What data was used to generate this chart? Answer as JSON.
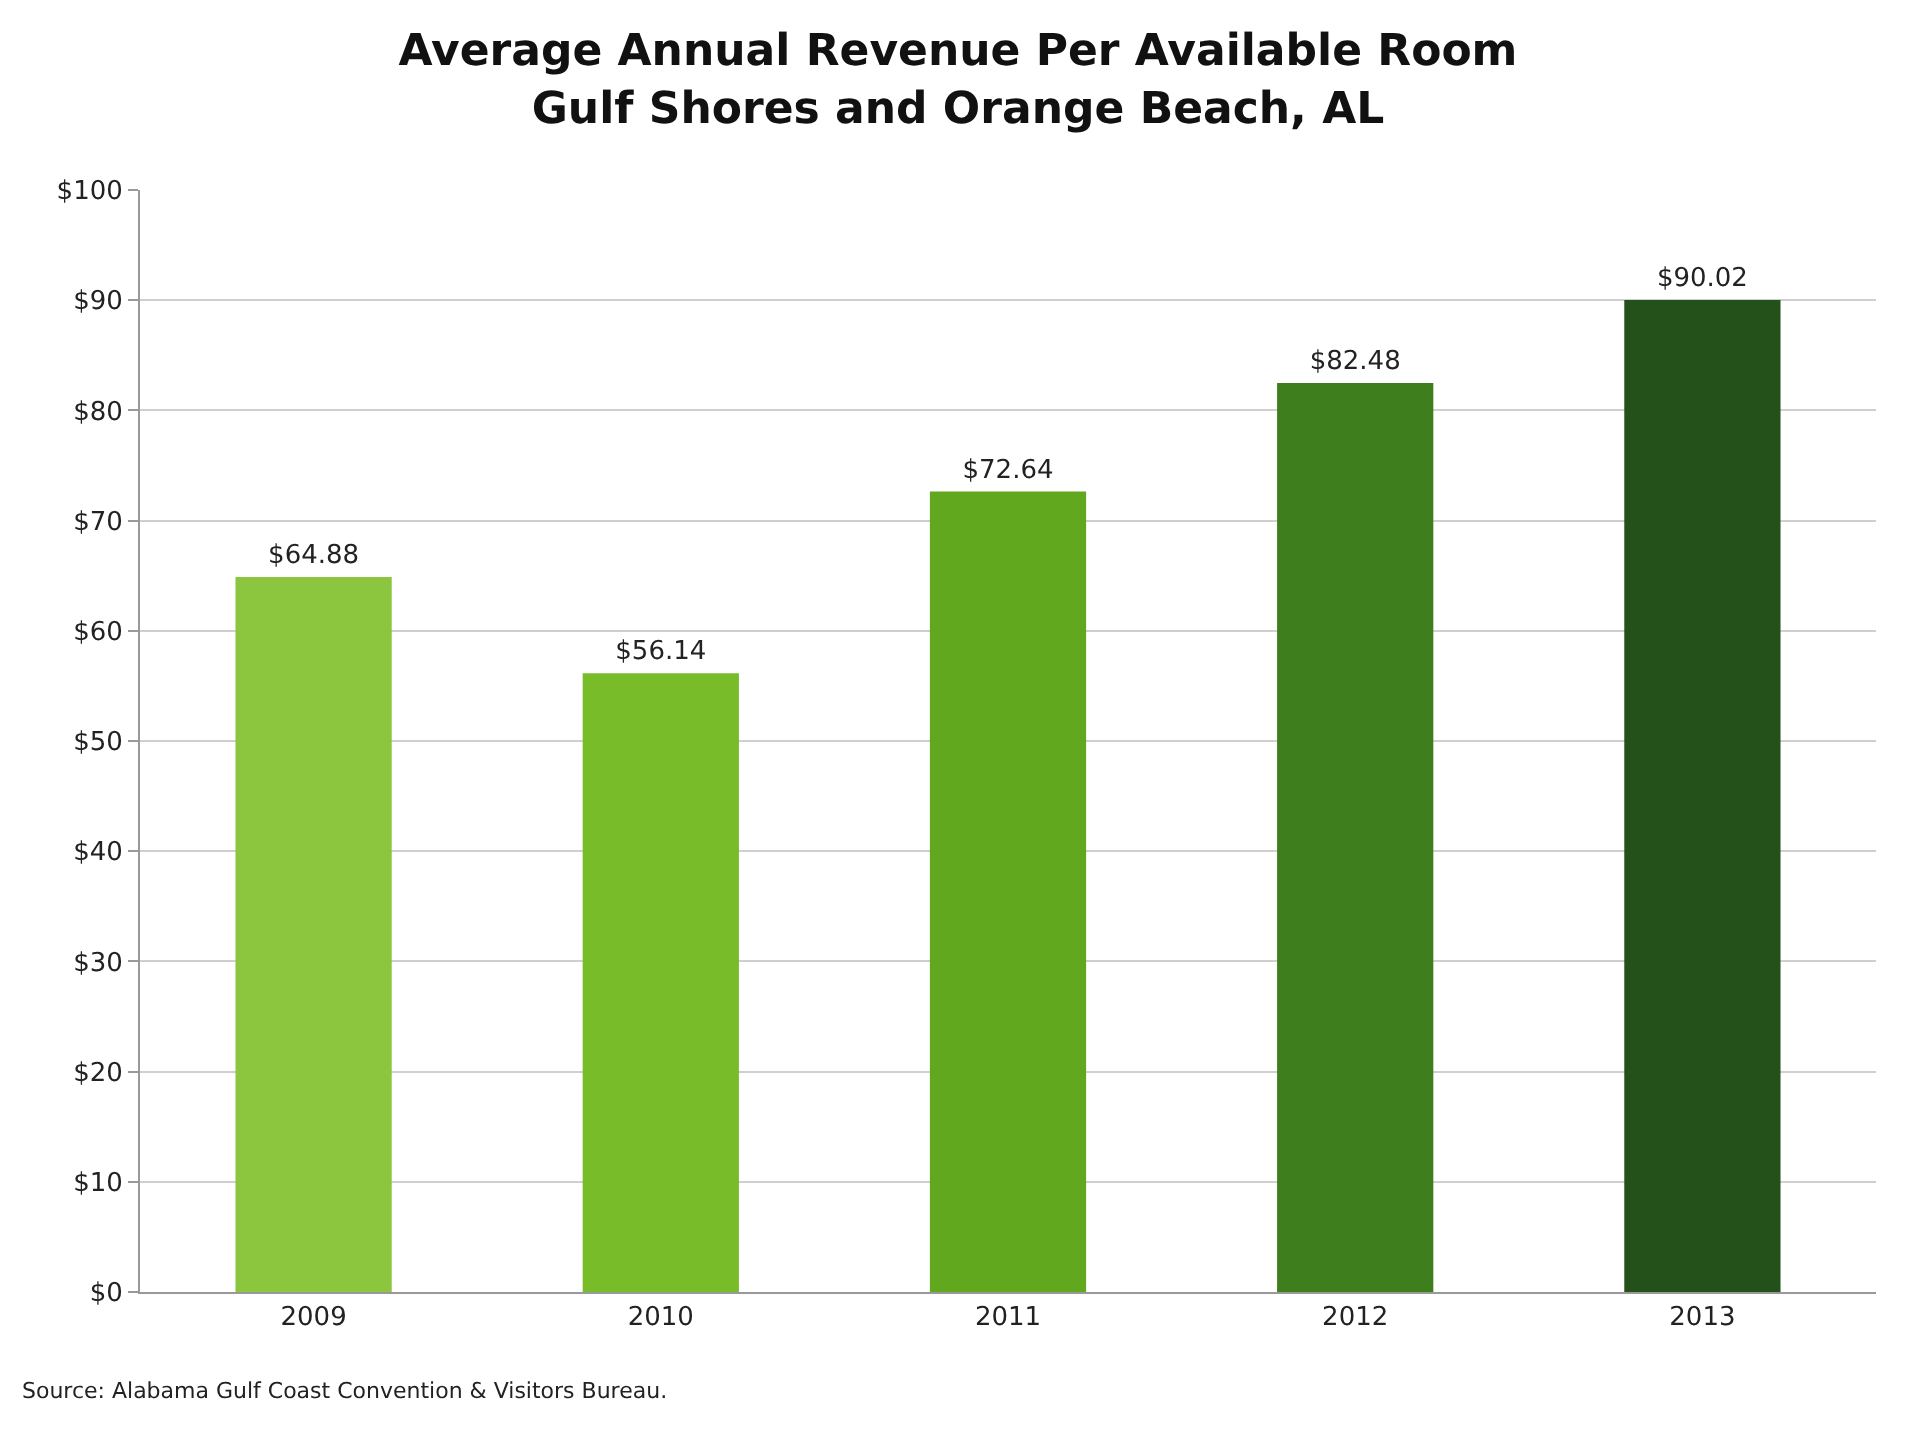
{
  "chart_data": {
    "type": "bar",
    "title": "Average Annual Revenue Per Available Room\nGulf Shores and Orange Beach, AL",
    "categories": [
      "2009",
      "2010",
      "2011",
      "2012",
      "2013"
    ],
    "values": [
      64.88,
      56.14,
      72.64,
      82.48,
      90.02
    ],
    "colors": [
      "#8cc63f",
      "#78bc2a",
      "#62a81e",
      "#3f7e1c",
      "#24501a"
    ],
    "value_labels": [
      "$64.88",
      "$56.14",
      "$72.64",
      "$82.48",
      "$90.02"
    ],
    "ylim": [
      0,
      100
    ],
    "yticks": [
      {
        "value": 0,
        "label": "$0"
      },
      {
        "value": 10,
        "label": "$10"
      },
      {
        "value": 20,
        "label": "$20"
      },
      {
        "value": 30,
        "label": "$30"
      },
      {
        "value": 40,
        "label": "$40"
      },
      {
        "value": 50,
        "label": "$50"
      },
      {
        "value": 60,
        "label": "$60"
      },
      {
        "value": 70,
        "label": "$70"
      },
      {
        "value": 80,
        "label": "$80"
      },
      {
        "value": 90,
        "label": "$90"
      },
      {
        "value": 100,
        "label": "$100"
      }
    ],
    "grid": "y",
    "legend": false,
    "annotations": [
      "Source: Alabama Gulf Coast Convention & Visitors Bureau."
    ]
  }
}
